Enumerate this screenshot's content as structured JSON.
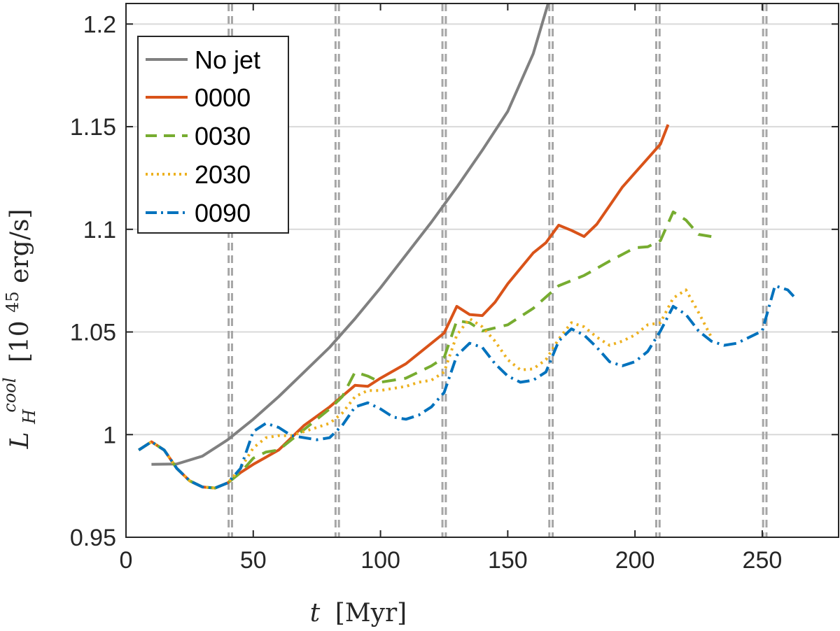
{
  "chart_data": {
    "type": "line",
    "title": "",
    "xlabel_var": "t",
    "xlabel_unit": "[Myr]",
    "ylabel_var": "L",
    "ylabel_sub": "H",
    "ylabel_sup": "cool",
    "ylabel_unit_pre": "[10",
    "ylabel_unit_exp": "45",
    "ylabel_unit_post": " erg/s]",
    "xlim": [
      0,
      280
    ],
    "ylim": [
      0.95,
      1.21
    ],
    "xticks": [
      0,
      50,
      100,
      150,
      200,
      250
    ],
    "xtick_labels": [
      "0",
      "50",
      "100",
      "150",
      "200",
      "250"
    ],
    "yticks": [
      0.95,
      1.0,
      1.05,
      1.1,
      1.15,
      1.2
    ],
    "ytick_labels": [
      "0.95",
      "1",
      "1.05",
      "1.1",
      "1.15",
      "1.2"
    ],
    "grid": "horizontal",
    "legend_position": "top-left",
    "vertical_reference_lines": [
      41,
      83,
      125,
      167,
      209,
      251
    ],
    "series": [
      {
        "name": "No jet",
        "color": "#808080",
        "style": "solid",
        "x": [
          10,
          20,
          30,
          40,
          50,
          60,
          70,
          80,
          90,
          100,
          110,
          120,
          130,
          140,
          150,
          160,
          166
        ],
        "y": [
          0.9855,
          0.9857,
          0.9895,
          0.9975,
          1.0075,
          1.0185,
          1.0305,
          1.0425,
          1.0565,
          1.0715,
          1.0875,
          1.1035,
          1.1205,
          1.1385,
          1.1575,
          1.1855,
          1.2105
        ]
      },
      {
        "name": "0000",
        "color": "#D95319",
        "style": "solid",
        "x": [
          5,
          10,
          15,
          20,
          25,
          30,
          35,
          40,
          45,
          50,
          60,
          70,
          80,
          90,
          95,
          100,
          110,
          120,
          125,
          130,
          135,
          140,
          145,
          150,
          160,
          165,
          170,
          175,
          180,
          185,
          190,
          195,
          200,
          205,
          210,
          213
        ],
        "y": [
          0.9925,
          0.9965,
          0.9925,
          0.9835,
          0.9775,
          0.9745,
          0.974,
          0.9765,
          0.9815,
          0.9855,
          0.9925,
          1.0045,
          1.0135,
          1.024,
          1.0235,
          1.0275,
          1.0345,
          1.0445,
          1.0495,
          1.0625,
          1.0585,
          1.058,
          1.0645,
          1.0735,
          1.0885,
          1.0935,
          1.102,
          1.0995,
          1.0965,
          1.1025,
          1.1115,
          1.1205,
          1.1275,
          1.1345,
          1.1415,
          1.151
        ]
      },
      {
        "name": "0030",
        "color": "#77AC30",
        "style": "dashed",
        "x": [
          5,
          10,
          15,
          20,
          25,
          30,
          35,
          40,
          45,
          50,
          55,
          60,
          70,
          80,
          85,
          90,
          95,
          100,
          110,
          120,
          125,
          130,
          135,
          140,
          150,
          160,
          170,
          180,
          190,
          200,
          205,
          210,
          215,
          220,
          225,
          230
        ],
        "y": [
          0.9925,
          0.9965,
          0.9925,
          0.9835,
          0.9775,
          0.9745,
          0.974,
          0.9765,
          0.9815,
          0.9885,
          0.9915,
          0.9925,
          1.0025,
          1.0125,
          1.0185,
          1.0305,
          1.0285,
          1.0255,
          1.0275,
          1.0335,
          1.0375,
          1.0555,
          1.0545,
          1.0505,
          1.0535,
          1.0615,
          1.0725,
          1.0775,
          1.0845,
          1.091,
          1.0915,
          1.0945,
          1.1085,
          1.1045,
          1.0975,
          1.0965
        ]
      },
      {
        "name": "2030",
        "color": "#EDB120",
        "style": "dotted",
        "x": [
          5,
          10,
          15,
          20,
          25,
          30,
          35,
          40,
          45,
          50,
          55,
          60,
          65,
          70,
          75,
          80,
          85,
          90,
          95,
          100,
          105,
          110,
          115,
          120,
          125,
          130,
          135,
          140,
          145,
          150,
          155,
          160,
          165,
          170,
          175,
          180,
          185,
          190,
          195,
          200,
          205,
          210,
          215,
          220,
          225,
          230
        ],
        "y": [
          0.9925,
          0.9965,
          0.9925,
          0.9835,
          0.9775,
          0.9745,
          0.974,
          0.9765,
          0.9835,
          0.9935,
          0.9985,
          0.9995,
          0.9995,
          1.0015,
          1.0035,
          1.0055,
          1.0105,
          1.0185,
          1.0215,
          1.0215,
          1.0225,
          1.0235,
          1.0255,
          1.0265,
          1.0305,
          1.0485,
          1.0565,
          1.0525,
          1.0455,
          1.0365,
          1.0315,
          1.032,
          1.0365,
          1.0465,
          1.0545,
          1.0525,
          1.0475,
          1.0435,
          1.0455,
          1.0485,
          1.0535,
          1.0545,
          1.0665,
          1.0705,
          1.0595,
          1.0475
        ]
      },
      {
        "name": "0090",
        "color": "#0072BD",
        "style": "dashdot",
        "x": [
          5,
          10,
          15,
          20,
          25,
          30,
          35,
          40,
          45,
          50,
          55,
          60,
          65,
          70,
          75,
          80,
          85,
          90,
          95,
          100,
          105,
          110,
          115,
          120,
          125,
          130,
          135,
          140,
          145,
          150,
          155,
          160,
          165,
          170,
          175,
          180,
          185,
          190,
          195,
          200,
          205,
          210,
          215,
          220,
          225,
          230,
          235,
          240,
          245,
          250,
          255,
          260,
          263
        ],
        "y": [
          0.9925,
          0.9965,
          0.9925,
          0.9835,
          0.9775,
          0.9745,
          0.974,
          0.9765,
          0.9835,
          1.0015,
          1.0055,
          1.0035,
          0.9995,
          0.9985,
          0.9975,
          0.9985,
          1.0045,
          1.0135,
          1.0155,
          1.0125,
          1.0085,
          1.0075,
          1.0095,
          1.0135,
          1.0205,
          1.0385,
          1.0445,
          1.0425,
          1.0345,
          1.0285,
          1.0255,
          1.0265,
          1.0305,
          1.0455,
          1.0515,
          1.0485,
          1.0425,
          1.0355,
          1.0335,
          1.0355,
          1.0405,
          1.0505,
          1.0625,
          1.0585,
          1.0505,
          1.0455,
          1.0435,
          1.0445,
          1.0475,
          1.0505,
          1.0725,
          1.0705,
          1.0665
        ]
      }
    ]
  }
}
